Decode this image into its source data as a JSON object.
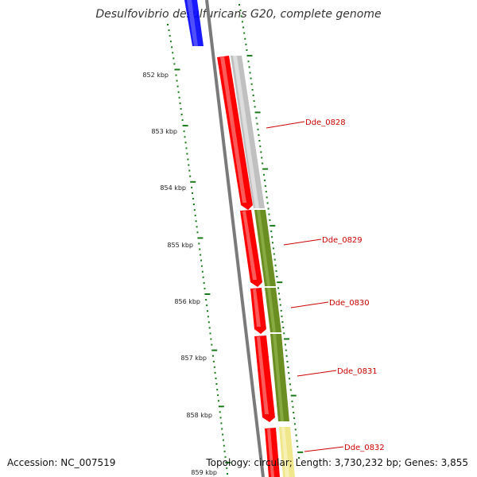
{
  "title": "Desulfovibrio desulfuricans G20, complete genome",
  "footer": {
    "accession": "Accession: NC_007519",
    "info": "Topology: circular; Length: 3,730,232 bp; Genes: 3,855"
  },
  "scale_labels": [
    "852 kbp",
    "853 kbp",
    "854 kbp",
    "855 kbp",
    "856 kbp",
    "857 kbp",
    "858 kbp",
    "859 kbp"
  ],
  "gene_labels": [
    "Dde_0828",
    "Dde_0829",
    "Dde_0830",
    "Dde_0831",
    "Dde_0832"
  ],
  "colors": {
    "backbone": "#808080",
    "cds": "#ff0000",
    "gray_gene": "#c0c0c0",
    "green_gene": "#6b8e23",
    "yellow_gene": "#f0e68c",
    "blue_gene": "#0000ff",
    "label": "#cc0000",
    "tick": "#1a7a1a"
  }
}
